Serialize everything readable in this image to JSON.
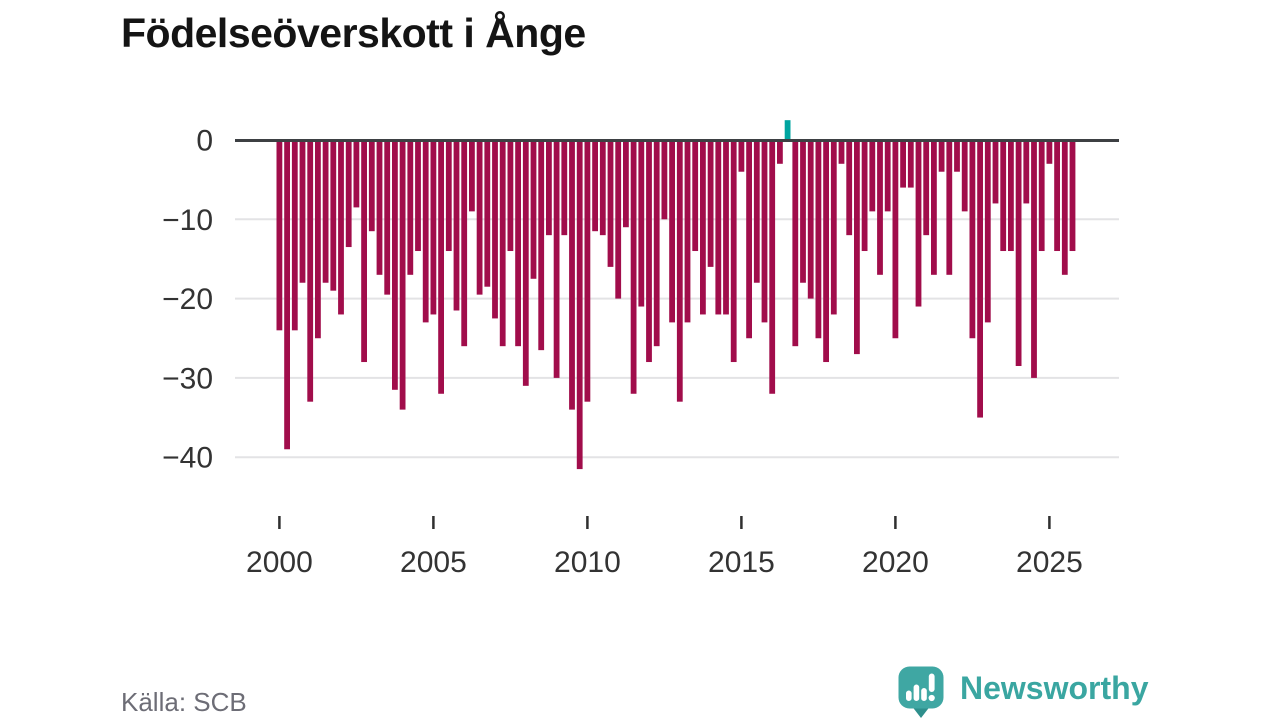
{
  "title": "Födelseöverskott i Ånge",
  "source": {
    "label": "Källa: SCB"
  },
  "branding": {
    "name": "Newsworthy",
    "icon": "newsworthy-speech-bubble-bar-chart-icon"
  },
  "colors": {
    "negative_bar": "#a10d4b",
    "positive_bar": "#00a5a0",
    "zero_axis": "#3d4043",
    "gridline": "#e3e3e5",
    "tick_text": "#333333",
    "title_text": "#141414",
    "source_text": "#6d6d76",
    "brand_teal": "#3aa6a1",
    "background": "#ffffff"
  },
  "chart_data": {
    "type": "bar",
    "title": "Födelseöverskott i Ånge",
    "xlabel": "",
    "ylabel": "",
    "frequency": "quarterly",
    "period_start": "2000 Q1",
    "period_end": "2025 Q4",
    "ylim": [
      -43,
      3
    ],
    "grid": "horizontal",
    "legend": "none",
    "y_ticks": [
      0,
      -10,
      -20,
      -30,
      -40
    ],
    "y_tick_labels": [
      "0",
      "−10",
      "−20",
      "−30",
      "−40"
    ],
    "x_tick_years": [
      2000,
      2005,
      2010,
      2015,
      2020,
      2025
    ],
    "x_tick_labels": [
      "2000",
      "2005",
      "2010",
      "2015",
      "2020",
      "2025"
    ],
    "positive_highlight": {
      "period": "2016 Q3",
      "value": 2.5
    },
    "values": [
      -24,
      -39,
      -24,
      -18,
      -33,
      -25,
      -18,
      -19,
      -22,
      -13.5,
      -8.5,
      -28,
      -11.5,
      -17,
      -19.5,
      -31.5,
      -34,
      -17,
      -14,
      -23,
      -22,
      -32,
      -14,
      -21.5,
      -26,
      -9,
      -19.5,
      -18.5,
      -22.5,
      -26,
      -14,
      -26,
      -31,
      -17.5,
      -26.5,
      -12,
      -30,
      -12,
      -34,
      -41.5,
      -33,
      -11.5,
      -12,
      -16,
      -20,
      -11,
      -32,
      -21,
      -28,
      -26,
      -10,
      -23,
      -33,
      -23,
      -14,
      -22,
      -16,
      -22,
      -22,
      -28,
      -4,
      -25,
      -18,
      -23,
      -32,
      -3,
      2.5,
      -26,
      -18,
      -20,
      -25,
      -28,
      -22,
      -3,
      -12,
      -27,
      -14,
      -9,
      -17,
      -9,
      -25,
      -6,
      -6,
      -21,
      -12,
      -17,
      -4,
      -17,
      -4,
      -9,
      -25,
      -35,
      -23,
      -8,
      -14,
      -14,
      -28.5,
      -8,
      -30,
      -14,
      -3,
      -14,
      -17,
      -14
    ]
  }
}
